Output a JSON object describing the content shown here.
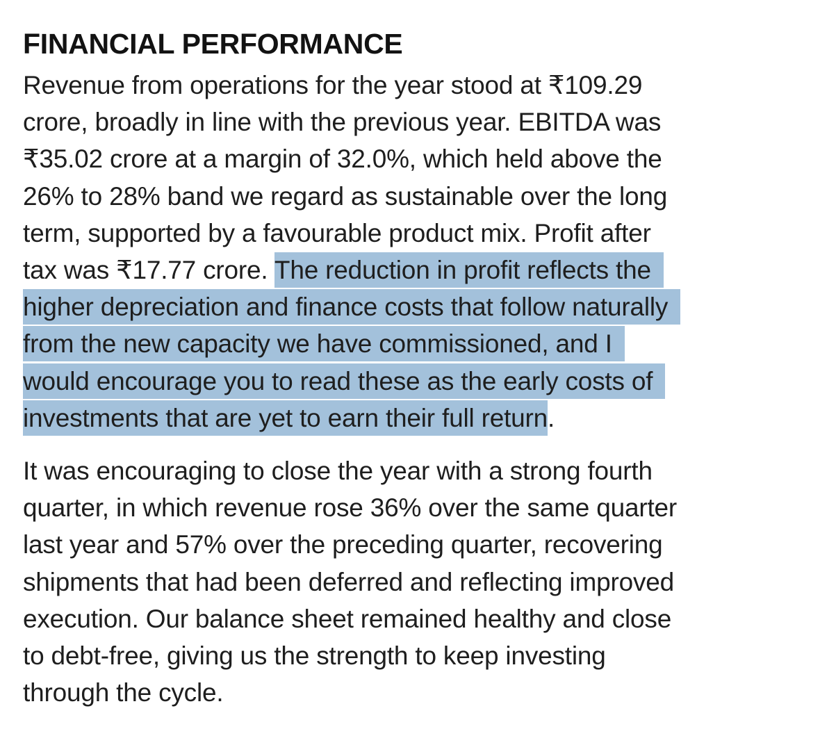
{
  "heading": "FINANCIAL PERFORMANCE",
  "paragraph1": {
    "lines": [
      "Revenue from operations for the year stood at ₹109.29",
      "crore, broadly in line with the previous year. EBITDA was",
      "₹35.02 crore at a margin of 32.0%, which held above the",
      "26% to 28% band we regard as sustainable over the long",
      "term, supported by a favourable product mix. Profit after"
    ],
    "line6_plain": "tax was ₹17.77 crore. ",
    "line6_selected": "The reduction in profit reflects the",
    "selected_lines": [
      "higher depreciation and finance costs that follow naturally",
      "from the new capacity we have commissioned, and I",
      "would encourage you to read these as the early costs of"
    ],
    "last_selected": "investments that are yet to earn their full return",
    "last_plain": "."
  },
  "paragraph2": {
    "lines": [
      "It was encouraging to close the year with a strong fourth",
      "quarter, in which revenue rose 36% over the same quarter",
      "last year and 57% over the preceding quarter, recovering",
      "shipments that had been deferred and reflecting improved",
      "execution. Our balance sheet remained healthy and close",
      "to debt-free, giving us the strength to keep investing",
      "through the cycle."
    ]
  },
  "colors": {
    "selection": "#a3c1db",
    "text": "#1e1e1e",
    "background": "#ffffff"
  }
}
